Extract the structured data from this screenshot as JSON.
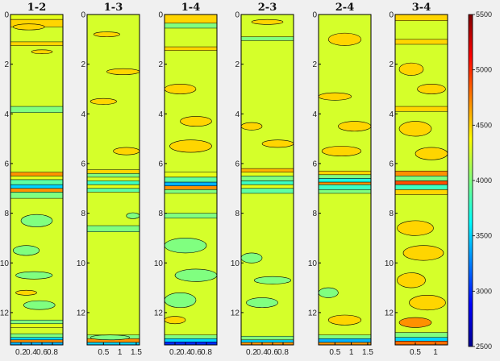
{
  "chart_data": {
    "type": "heatmap",
    "subtype": "filled-contour",
    "panels": [
      {
        "title": "1-2",
        "ylim": [
          0,
          13.3
        ],
        "yticks": [
          0,
          2,
          4,
          6,
          8,
          10,
          12
        ],
        "ytick_labels": [
          "0",
          "2",
          "4",
          "6",
          "8",
          "10",
          "12"
        ],
        "xlim": [
          0,
          1.0
        ],
        "xticks": [
          0.2,
          0.4,
          0.6,
          0.8
        ],
        "xtick_labels": [
          "0.2",
          "0.4",
          "0.6",
          "0.8"
        ],
        "bands": [
          {
            "y0": 0.0,
            "y1": 0.2,
            "v": 4300
          },
          {
            "y0": 0.2,
            "y1": 0.5,
            "v": 4500
          },
          {
            "y0": 1.1,
            "y1": 1.25,
            "v": 4500
          },
          {
            "y0": 3.7,
            "y1": 3.95,
            "v": 4000
          },
          {
            "y0": 6.35,
            "y1": 6.5,
            "v": 4700
          },
          {
            "y0": 6.5,
            "y1": 6.65,
            "v": 4300
          },
          {
            "y0": 6.65,
            "y1": 6.85,
            "v": 3900
          },
          {
            "y0": 6.85,
            "y1": 7.0,
            "v": 3500
          },
          {
            "y0": 7.0,
            "y1": 7.15,
            "v": 4700
          },
          {
            "y0": 7.15,
            "y1": 7.4,
            "v": 4000
          },
          {
            "y0": 12.3,
            "y1": 12.45,
            "v": 4000
          },
          {
            "y0": 12.45,
            "y1": 12.6,
            "v": 4300
          },
          {
            "y0": 12.85,
            "y1": 13.0,
            "v": 4000
          },
          {
            "y0": 13.0,
            "y1": 13.1,
            "v": 3500
          },
          {
            "y0": 13.1,
            "y1": 13.2,
            "v": 4700
          },
          {
            "y0": 13.2,
            "y1": 13.3,
            "v": 3400
          }
        ],
        "patches": [
          {
            "x": 0.35,
            "y": 0.5,
            "rx": 0.3,
            "ry": 0.12,
            "v": 4500
          },
          {
            "x": 0.6,
            "y": 1.5,
            "rx": 0.2,
            "ry": 0.08,
            "v": 4500
          },
          {
            "x": 0.5,
            "y": 8.3,
            "rx": 0.3,
            "ry": 0.25,
            "v": 4000
          },
          {
            "x": 0.3,
            "y": 9.5,
            "rx": 0.25,
            "ry": 0.2,
            "v": 4000
          },
          {
            "x": 0.45,
            "y": 10.5,
            "rx": 0.35,
            "ry": 0.15,
            "v": 4000
          },
          {
            "x": 0.55,
            "y": 11.7,
            "rx": 0.3,
            "ry": 0.18,
            "v": 4000
          },
          {
            "x": 0.3,
            "y": 11.2,
            "rx": 0.2,
            "ry": 0.1,
            "v": 4500
          }
        ]
      },
      {
        "title": "1-3",
        "ylim": [
          0,
          13.3
        ],
        "yticks": [
          0,
          2,
          4,
          6,
          8,
          10,
          12
        ],
        "ytick_labels": [
          "0",
          "2",
          "4",
          "6",
          "8",
          "10",
          "12"
        ],
        "xlim": [
          0,
          1.6
        ],
        "xticks": [
          0.5,
          1,
          1.5
        ],
        "xtick_labels": [
          "0.5",
          "1",
          "1.5"
        ],
        "bands": [
          {
            "y0": 6.25,
            "y1": 6.4,
            "v": 4500
          },
          {
            "y0": 6.4,
            "y1": 6.55,
            "v": 4000
          },
          {
            "y0": 6.7,
            "y1": 6.85,
            "v": 3800
          },
          {
            "y0": 6.85,
            "y1": 7.0,
            "v": 4300
          },
          {
            "y0": 7.0,
            "y1": 7.15,
            "v": 3900
          },
          {
            "y0": 8.5,
            "y1": 8.75,
            "v": 4000
          },
          {
            "y0": 12.9,
            "y1": 13.05,
            "v": 4000
          },
          {
            "y0": 13.05,
            "y1": 13.2,
            "v": 4700
          },
          {
            "y0": 13.2,
            "y1": 13.3,
            "v": 3500
          }
        ],
        "patches": [
          {
            "x": 0.6,
            "y": 0.8,
            "rx": 0.4,
            "ry": 0.1,
            "v": 4500
          },
          {
            "x": 1.1,
            "y": 2.3,
            "rx": 0.5,
            "ry": 0.12,
            "v": 4500
          },
          {
            "x": 0.5,
            "y": 3.5,
            "rx": 0.4,
            "ry": 0.12,
            "v": 4500
          },
          {
            "x": 1.2,
            "y": 5.5,
            "rx": 0.4,
            "ry": 0.15,
            "v": 4500
          },
          {
            "x": 1.4,
            "y": 8.1,
            "rx": 0.2,
            "ry": 0.12,
            "v": 4000
          },
          {
            "x": 0.7,
            "y": 13.0,
            "rx": 0.6,
            "ry": 0.1,
            "v": 4000
          }
        ]
      },
      {
        "title": "1-4",
        "ylim": [
          0,
          13.3
        ],
        "yticks": [
          0,
          2,
          4,
          6,
          8,
          10,
          12
        ],
        "ytick_labels": [
          "0",
          "2",
          "4",
          "6",
          "8",
          "10",
          "12"
        ],
        "xlim": [
          0,
          1.0
        ],
        "xticks": [
          0.2,
          0.4,
          0.6,
          0.8
        ],
        "xtick_labels": [
          "0.2",
          "0.4",
          "0.6",
          "0.8"
        ],
        "bands": [
          {
            "y0": 0.0,
            "y1": 0.35,
            "v": 4500
          },
          {
            "y0": 0.35,
            "y1": 0.55,
            "v": 4000
          },
          {
            "y0": 1.3,
            "y1": 1.45,
            "v": 4500
          },
          {
            "y0": 6.35,
            "y1": 6.55,
            "v": 4300
          },
          {
            "y0": 6.55,
            "y1": 6.75,
            "v": 3900
          },
          {
            "y0": 6.75,
            "y1": 6.9,
            "v": 3400
          },
          {
            "y0": 6.9,
            "y1": 7.05,
            "v": 4700
          },
          {
            "y0": 7.05,
            "y1": 7.2,
            "v": 4000
          },
          {
            "y0": 8.0,
            "y1": 8.2,
            "v": 4000
          },
          {
            "y0": 12.9,
            "y1": 13.05,
            "v": 4000
          },
          {
            "y0": 13.05,
            "y1": 13.18,
            "v": 3500
          },
          {
            "y0": 13.18,
            "y1": 13.3,
            "v": 3000
          }
        ],
        "patches": [
          {
            "x": 0.3,
            "y": 3.0,
            "rx": 0.3,
            "ry": 0.2,
            "v": 4500
          },
          {
            "x": 0.6,
            "y": 4.3,
            "rx": 0.3,
            "ry": 0.2,
            "v": 4500
          },
          {
            "x": 0.5,
            "y": 5.3,
            "rx": 0.4,
            "ry": 0.25,
            "v": 4500
          },
          {
            "x": 0.4,
            "y": 9.3,
            "rx": 0.4,
            "ry": 0.3,
            "v": 4000
          },
          {
            "x": 0.6,
            "y": 10.5,
            "rx": 0.4,
            "ry": 0.25,
            "v": 4000
          },
          {
            "x": 0.3,
            "y": 11.5,
            "rx": 0.3,
            "ry": 0.3,
            "v": 4000
          },
          {
            "x": 0.2,
            "y": 12.3,
            "rx": 0.2,
            "ry": 0.15,
            "v": 4500
          }
        ]
      },
      {
        "title": "2-3",
        "ylim": [
          0,
          13.3
        ],
        "yticks": [
          0,
          2,
          4,
          6,
          8,
          10,
          12
        ],
        "ytick_labels": [
          "0",
          "2",
          "4",
          "6",
          "8",
          "10",
          "12"
        ],
        "xlim": [
          0,
          1.0
        ],
        "xticks": [
          0.2,
          0.4,
          0.6,
          0.8
        ],
        "xtick_labels": [
          "0.2",
          "0.4",
          "0.6",
          "0.8"
        ],
        "bands": [
          {
            "y0": 0.9,
            "y1": 1.05,
            "v": 4000
          },
          {
            "y0": 6.2,
            "y1": 6.35,
            "v": 4600
          },
          {
            "y0": 6.35,
            "y1": 6.5,
            "v": 4300
          },
          {
            "y0": 6.5,
            "y1": 6.7,
            "v": 4000
          },
          {
            "y0": 6.7,
            "y1": 6.85,
            "v": 3800
          },
          {
            "y0": 6.85,
            "y1": 7.0,
            "v": 4300
          },
          {
            "y0": 7.0,
            "y1": 7.2,
            "v": 3900
          },
          {
            "y0": 12.95,
            "y1": 13.1,
            "v": 4000
          },
          {
            "y0": 13.1,
            "y1": 13.2,
            "v": 3500
          },
          {
            "y0": 13.2,
            "y1": 13.3,
            "v": 4700
          }
        ],
        "patches": [
          {
            "x": 0.5,
            "y": 0.3,
            "rx": 0.3,
            "ry": 0.1,
            "v": 4500
          },
          {
            "x": 0.2,
            "y": 4.5,
            "rx": 0.2,
            "ry": 0.15,
            "v": 4500
          },
          {
            "x": 0.7,
            "y": 5.2,
            "rx": 0.3,
            "ry": 0.15,
            "v": 4500
          },
          {
            "x": 0.2,
            "y": 9.8,
            "rx": 0.2,
            "ry": 0.2,
            "v": 4000
          },
          {
            "x": 0.6,
            "y": 10.7,
            "rx": 0.35,
            "ry": 0.15,
            "v": 4000
          },
          {
            "x": 0.4,
            "y": 11.6,
            "rx": 0.3,
            "ry": 0.2,
            "v": 4000
          }
        ]
      },
      {
        "title": "2-4",
        "ylim": [
          0,
          13.3
        ],
        "yticks": [
          0,
          2,
          4,
          6,
          8,
          10,
          12
        ],
        "ytick_labels": [
          "0",
          "2",
          "4",
          "6",
          "8",
          "10",
          "12"
        ],
        "xlim": [
          0,
          1.6
        ],
        "xticks": [
          0.5,
          1,
          1.5
        ],
        "xtick_labels": [
          "0.5",
          "1",
          "1.5"
        ],
        "bands": [
          {
            "y0": 6.3,
            "y1": 6.45,
            "v": 4500
          },
          {
            "y0": 6.45,
            "y1": 6.6,
            "v": 4000
          },
          {
            "y0": 6.6,
            "y1": 6.75,
            "v": 3700
          },
          {
            "y0": 6.75,
            "y1": 6.85,
            "v": 4700
          },
          {
            "y0": 6.85,
            "y1": 7.05,
            "v": 3800
          },
          {
            "y0": 7.05,
            "y1": 7.2,
            "v": 4000
          },
          {
            "y0": 12.9,
            "y1": 13.05,
            "v": 4000
          },
          {
            "y0": 13.05,
            "y1": 13.2,
            "v": 3400
          },
          {
            "y0": 13.2,
            "y1": 13.3,
            "v": 4700
          }
        ],
        "patches": [
          {
            "x": 0.8,
            "y": 1.0,
            "rx": 0.5,
            "ry": 0.25,
            "v": 4500
          },
          {
            "x": 0.5,
            "y": 3.3,
            "rx": 0.5,
            "ry": 0.15,
            "v": 4500
          },
          {
            "x": 1.1,
            "y": 4.5,
            "rx": 0.5,
            "ry": 0.2,
            "v": 4500
          },
          {
            "x": 0.7,
            "y": 5.5,
            "rx": 0.6,
            "ry": 0.2,
            "v": 4500
          },
          {
            "x": 0.3,
            "y": 11.2,
            "rx": 0.3,
            "ry": 0.2,
            "v": 4000
          },
          {
            "x": 0.8,
            "y": 12.3,
            "rx": 0.5,
            "ry": 0.2,
            "v": 4500
          }
        ]
      },
      {
        "title": "3-4",
        "ylim": [
          0,
          13.3
        ],
        "yticks": [
          0,
          2,
          4,
          6,
          8,
          10,
          12
        ],
        "ytick_labels": [
          "0",
          "2",
          "4",
          "6",
          "8",
          "10",
          "12"
        ],
        "xlim": [
          0,
          1.3
        ],
        "xticks": [
          0.5,
          1
        ],
        "xtick_labels": [
          "0.5",
          "1"
        ],
        "bands": [
          {
            "y0": 0.0,
            "y1": 0.25,
            "v": 4500
          },
          {
            "y0": 1.0,
            "y1": 1.2,
            "v": 4500
          },
          {
            "y0": 3.7,
            "y1": 3.9,
            "v": 4500
          },
          {
            "y0": 6.3,
            "y1": 6.5,
            "v": 4700
          },
          {
            "y0": 6.5,
            "y1": 6.7,
            "v": 4000
          },
          {
            "y0": 6.7,
            "y1": 6.85,
            "v": 4900
          },
          {
            "y0": 6.85,
            "y1": 7.05,
            "v": 3800
          },
          {
            "y0": 7.05,
            "y1": 7.25,
            "v": 4500
          },
          {
            "y0": 12.8,
            "y1": 13.0,
            "v": 4000
          },
          {
            "y0": 13.0,
            "y1": 13.15,
            "v": 3500
          },
          {
            "y0": 13.15,
            "y1": 13.3,
            "v": 4800
          }
        ],
        "patches": [
          {
            "x": 0.4,
            "y": 2.2,
            "rx": 0.3,
            "ry": 0.25,
            "v": 4500
          },
          {
            "x": 0.9,
            "y": 3.0,
            "rx": 0.35,
            "ry": 0.2,
            "v": 4500
          },
          {
            "x": 0.5,
            "y": 4.6,
            "rx": 0.4,
            "ry": 0.3,
            "v": 4500
          },
          {
            "x": 0.9,
            "y": 5.6,
            "rx": 0.4,
            "ry": 0.25,
            "v": 4500
          },
          {
            "x": 0.5,
            "y": 8.6,
            "rx": 0.45,
            "ry": 0.3,
            "v": 4500
          },
          {
            "x": 0.7,
            "y": 9.6,
            "rx": 0.5,
            "ry": 0.3,
            "v": 4500
          },
          {
            "x": 0.4,
            "y": 10.7,
            "rx": 0.35,
            "ry": 0.3,
            "v": 4500
          },
          {
            "x": 0.8,
            "y": 11.6,
            "rx": 0.45,
            "ry": 0.3,
            "v": 4500
          },
          {
            "x": 0.5,
            "y": 12.4,
            "rx": 0.4,
            "ry": 0.2,
            "v": 4700
          }
        ]
      }
    ],
    "colorbar": {
      "range": [
        2500,
        5500
      ],
      "ticks": [
        2500,
        3000,
        3500,
        4000,
        4500,
        5000,
        5500
      ],
      "tick_labels": [
        "2500",
        "3000",
        "3500",
        "4000",
        "4500",
        "5000",
        "5500"
      ],
      "colormap": "jet",
      "background_value": 4250
    },
    "grid": false
  },
  "colors": {
    "figure_background": "#f0f0f0",
    "contour_line": "#000000",
    "axis": "#000000"
  }
}
